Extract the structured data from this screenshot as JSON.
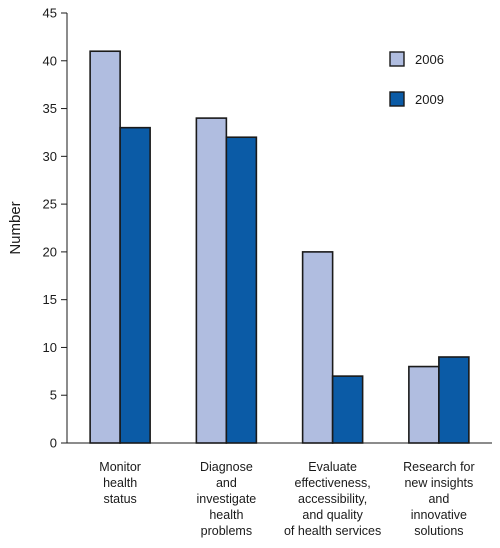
{
  "chart_data": {
    "type": "bar",
    "title": "",
    "xlabel": "",
    "ylabel": "Number",
    "ylim": [
      0,
      45
    ],
    "yticks": [
      0,
      5,
      10,
      15,
      20,
      25,
      30,
      35,
      40,
      45
    ],
    "grid": false,
    "legend_position": "top-right",
    "categories": [
      [
        "Monitor",
        "health",
        "status"
      ],
      [
        "Diagnose",
        "and",
        "investigate",
        "health",
        "problems"
      ],
      [
        "Evaluate",
        "effectiveness,",
        "accessibility,",
        "and quality",
        "of health services"
      ],
      [
        "Research for",
        "new insights",
        "and",
        "innovative",
        "solutions"
      ]
    ],
    "series": [
      {
        "name": "2006",
        "values": [
          41,
          34,
          20,
          8
        ],
        "color": "#b0bde0"
      },
      {
        "name": "2009",
        "values": [
          33,
          32,
          7,
          9
        ],
        "color": "#0b5ba6"
      }
    ]
  }
}
